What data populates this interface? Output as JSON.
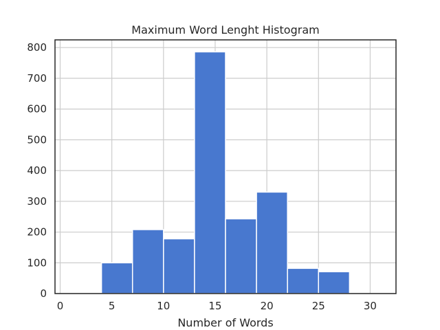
{
  "chart_data": {
    "type": "bar",
    "title": "Maximum Word Lenght Histogram",
    "xlabel": "Number of Words",
    "ylabel": "",
    "xlim": [
      -0.5,
      32.5
    ],
    "ylim": [
      0,
      825
    ],
    "xticks": [
      0,
      5,
      10,
      15,
      20,
      25,
      30
    ],
    "yticks": [
      0,
      100,
      200,
      300,
      400,
      500,
      600,
      700,
      800
    ],
    "grid": true,
    "bar_color": "#4878cf",
    "bins": [
      {
        "x0": 1,
        "x1": 4,
        "value": 0
      },
      {
        "x0": 4,
        "x1": 7,
        "value": 100
      },
      {
        "x0": 7,
        "x1": 10,
        "value": 208
      },
      {
        "x0": 10,
        "x1": 13,
        "value": 178
      },
      {
        "x0": 13,
        "x1": 16,
        "value": 786
      },
      {
        "x0": 16,
        "x1": 19,
        "value": 243
      },
      {
        "x0": 19,
        "x1": 22,
        "value": 330
      },
      {
        "x0": 22,
        "x1": 25,
        "value": 82
      },
      {
        "x0": 25,
        "x1": 28,
        "value": 71
      },
      {
        "x0": 28,
        "x1": 31,
        "value": 0
      }
    ]
  }
}
